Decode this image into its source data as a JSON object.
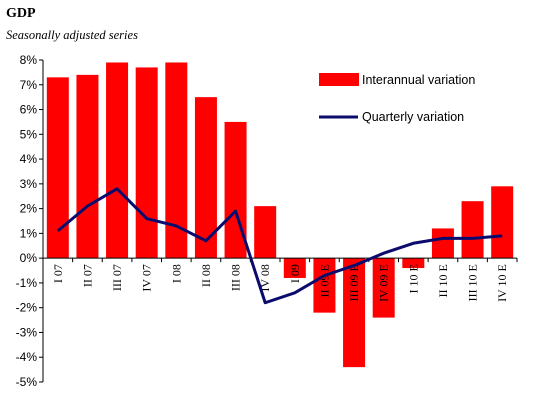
{
  "chart_data": {
    "type": "bar",
    "title": "GDP",
    "subtitle": "Seasonally adjusted series",
    "categories": [
      "I 07",
      "II 07",
      "III 07",
      "IV 07",
      "I 08",
      "II 08",
      "III 08",
      "IV 08",
      "I 09",
      "II 09 E",
      "III 09 E",
      "IV 09 E",
      "I 10 E",
      "II 10 E",
      "III 10 E",
      "IV 10 E"
    ],
    "series": [
      {
        "name": "Interannual variation",
        "type": "bar",
        "color": "#ff0000",
        "values": [
          7.3,
          7.4,
          7.9,
          7.7,
          7.9,
          6.5,
          5.5,
          2.1,
          -0.8,
          -2.2,
          -4.4,
          -2.4,
          -0.4,
          1.2,
          2.3,
          2.9
        ]
      },
      {
        "name": "Quarterly variation",
        "type": "line",
        "color": "#0b0b6e",
        "values": [
          1.1,
          2.1,
          2.8,
          1.6,
          1.3,
          0.7,
          1.9,
          -1.8,
          -1.4,
          -0.7,
          -0.3,
          0.2,
          0.6,
          0.8,
          0.8,
          0.9
        ]
      }
    ],
    "ylim": [
      -5,
      8
    ],
    "yticks": [
      "8%",
      "7%",
      "6%",
      "5%",
      "4%",
      "3%",
      "2%",
      "1%",
      "0%",
      "-1%",
      "-2%",
      "-3%",
      "-4%",
      "-5%"
    ],
    "legend_position": "top-right",
    "grid": false
  }
}
